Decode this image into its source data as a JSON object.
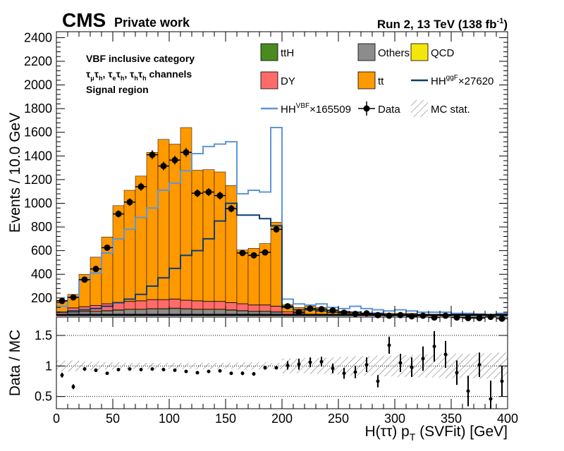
{
  "header": {
    "experiment": "CMS",
    "tag": "Private work",
    "run": "Run 2, 13 TeV (138 fb",
    "run_sup": "-1",
    "run_close": ")"
  },
  "annotations": {
    "category": "VBF inclusive category",
    "channels": [
      "τ",
      "μ",
      "τ",
      "h",
      ", ",
      "τ",
      "e",
      "τ",
      "h",
      ", ",
      "τ",
      "h",
      "τ",
      "h",
      " channels"
    ],
    "region": "Signal region"
  },
  "chart_data": {
    "type": "bar",
    "xlabel": "H(ττ) p",
    "xlabel_sub": "T",
    "xlabel_tail": " (SVFit) [GeV]",
    "ylabel": "Events / 10.0 GeV",
    "ratio_ylabel": "Data / MC",
    "xlim": [
      0,
      400
    ],
    "ylim": [
      50,
      2450
    ],
    "ratio_ylim": [
      0.3,
      1.8
    ],
    "x_ticks": [
      "0",
      "50",
      "100",
      "150",
      "200",
      "250",
      "300",
      "350",
      "400"
    ],
    "y_ticks": [
      "200",
      "400",
      "600",
      "800",
      "1000",
      "1200",
      "1400",
      "1600",
      "1800",
      "2000",
      "2200",
      "2400"
    ],
    "ratio_ticks": [
      "0.5",
      "1",
      "1.5"
    ],
    "bin_edges": [
      0,
      10,
      20,
      30,
      40,
      50,
      60,
      70,
      80,
      90,
      100,
      110,
      120,
      130,
      140,
      150,
      160,
      170,
      180,
      190,
      200,
      210,
      220,
      230,
      240,
      250,
      260,
      270,
      280,
      290,
      300,
      310,
      320,
      330,
      340,
      350,
      360,
      370,
      380,
      390,
      400
    ],
    "legend": [
      {
        "key": "ttH",
        "label": "ttH",
        "color": "#4a8a1e",
        "kind": "box"
      },
      {
        "key": "others",
        "label": "Others",
        "color": "#8c8c8c",
        "kind": "box"
      },
      {
        "key": "qcd",
        "label": "QCD",
        "color": "#f5e60a",
        "kind": "box"
      },
      {
        "key": "dy",
        "label": "DY",
        "color": "#ff6b6b",
        "kind": "box"
      },
      {
        "key": "tt",
        "label": "tt",
        "color": "#ff9900",
        "kind": "box"
      },
      {
        "key": "hh_ggf",
        "label": "HH",
        "sup": "ggF",
        "tail": "×27620",
        "color": "#0d3b73",
        "kind": "line"
      },
      {
        "key": "hh_vbf",
        "label": "HH",
        "sup": "VBF",
        "tail": "×165509",
        "color": "#5f95d8",
        "kind": "line"
      },
      {
        "key": "data",
        "label": "Data",
        "color": "#000000",
        "kind": "marker"
      },
      {
        "key": "mcstat",
        "label": "MC stat.",
        "color": "#999999",
        "kind": "hatch"
      }
    ],
    "series": [
      {
        "name": "Others",
        "values": [
          55,
          80,
          85,
          85,
          90,
          95,
          100,
          100,
          105,
          105,
          110,
          105,
          100,
          100,
          100,
          95,
          90,
          85,
          85,
          80,
          50,
          45,
          40,
          40,
          40,
          40,
          35,
          35,
          35,
          35,
          35,
          35,
          35,
          30,
          30,
          30,
          30,
          30,
          30,
          30
        ]
      },
      {
        "name": "QCD",
        "values": [
          5,
          5,
          5,
          5,
          5,
          5,
          5,
          5,
          5,
          5,
          5,
          5,
          5,
          5,
          5,
          5,
          5,
          5,
          5,
          5,
          2,
          2,
          2,
          2,
          2,
          2,
          2,
          2,
          2,
          2,
          2,
          2,
          2,
          2,
          2,
          2,
          2,
          2,
          2,
          2
        ]
      },
      {
        "name": "DY",
        "values": [
          20,
          30,
          35,
          45,
          55,
          60,
          65,
          70,
          75,
          75,
          75,
          70,
          70,
          65,
          65,
          60,
          55,
          50,
          50,
          45,
          30,
          25,
          20,
          20,
          20,
          20,
          15,
          15,
          15,
          15,
          15,
          15,
          15,
          15,
          10,
          10,
          10,
          10,
          10,
          10
        ]
      },
      {
        "name": "ttH",
        "values": [
          2,
          2,
          2,
          2,
          2,
          2,
          2,
          2,
          2,
          2,
          2,
          2,
          2,
          2,
          2,
          2,
          2,
          2,
          2,
          2,
          1,
          1,
          1,
          1,
          1,
          1,
          1,
          1,
          1,
          1,
          1,
          1,
          1,
          1,
          1,
          1,
          1,
          1,
          1,
          1
        ]
      },
      {
        "name": "tt",
        "values": [
          98,
          113,
          273,
          408,
          563,
          818,
          938,
          1053,
          1243,
          1353,
          1308,
          1458,
          1103,
          1113,
          1093,
          988,
          453,
          478,
          518,
          708,
          60,
          47,
          67,
          57,
          37,
          27,
          27,
          17,
          17,
          17,
          17,
          17,
          7,
          12,
          17,
          12,
          7,
          2,
          7,
          2
        ]
      }
    ],
    "hh_vbf": [
      130,
      205,
      350,
      410,
      580,
      700,
      780,
      880,
      960,
      1110,
      1170,
      1275,
      1420,
      1480,
      1500,
      1520,
      1080,
      1110,
      1095,
      1640,
      190,
      150,
      140,
      150,
      120,
      110,
      130,
      110,
      100,
      90,
      100,
      90,
      80,
      80,
      80,
      70,
      70,
      65,
      60,
      70
    ],
    "hh_ggf": [
      80,
      90,
      100,
      110,
      130,
      160,
      190,
      230,
      300,
      370,
      450,
      560,
      600,
      700,
      850,
      1000,
      900,
      900,
      870,
      810,
      120,
      100,
      100,
      90,
      80,
      80,
      80,
      70,
      70,
      60,
      60,
      60,
      50,
      50,
      50,
      50,
      40,
      40,
      40,
      35
    ],
    "data": [
      175,
      205,
      355,
      445,
      625,
      910,
      1010,
      1140,
      1410,
      1315,
      1365,
      1430,
      1085,
      1095,
      1065,
      955,
      580,
      560,
      585,
      780,
      130,
      80,
      110,
      105,
      95,
      75,
      65,
      70,
      55,
      50,
      55,
      45,
      50,
      35,
      50,
      35,
      30,
      30,
      40,
      25
    ],
    "ratio": [
      0.85,
      0.66,
      0.95,
      0.93,
      0.88,
      0.94,
      0.95,
      0.94,
      0.95,
      0.94,
      0.93,
      0.91,
      0.89,
      0.91,
      0.92,
      0.88,
      0.88,
      0.87,
      0.97,
      0.97,
      1.01,
      1.03,
      1.06,
      1.07,
      0.96,
      0.88,
      0.9,
      1.02,
      0.75,
      1.34,
      1.05,
      0.98,
      1.12,
      1.32,
      1.19,
      0.89,
      0.59,
      1.02,
      0.46,
      0.75
    ],
    "ratio_err": [
      0.04,
      0.04,
      0.03,
      0.03,
      0.02,
      0.02,
      0.02,
      0.02,
      0.02,
      0.02,
      0.02,
      0.02,
      0.02,
      0.02,
      0.02,
      0.02,
      0.03,
      0.03,
      0.03,
      0.02,
      0.07,
      0.09,
      0.08,
      0.08,
      0.08,
      0.09,
      0.1,
      0.12,
      0.1,
      0.14,
      0.15,
      0.16,
      0.2,
      0.25,
      0.22,
      0.2,
      0.25,
      0.2,
      0.3,
      0.25
    ],
    "mc_stat_band": [
      0.09,
      0.09,
      0.07,
      0.07,
      0.06,
      0.06,
      0.05,
      0.05,
      0.05,
      0.05,
      0.05,
      0.05,
      0.05,
      0.05,
      0.05,
      0.05,
      0.06,
      0.06,
      0.06,
      0.05,
      0.12,
      0.12,
      0.13,
      0.13,
      0.14,
      0.15,
      0.16,
      0.16,
      0.17,
      0.17,
      0.18,
      0.18,
      0.19,
      0.19,
      0.2,
      0.2,
      0.2,
      0.21,
      0.21,
      0.22
    ]
  }
}
